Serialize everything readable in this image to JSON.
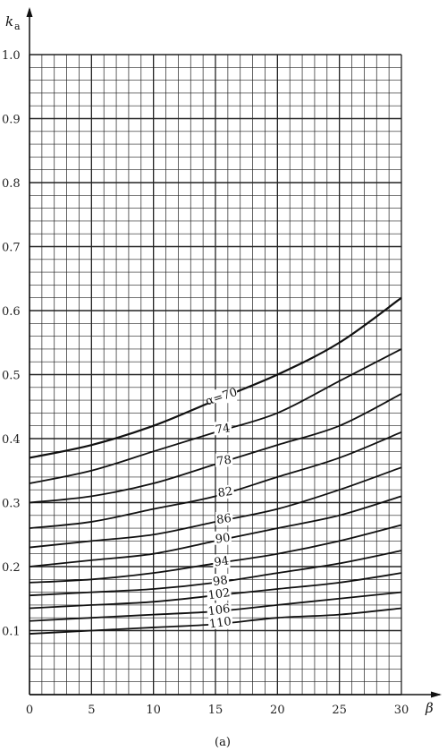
{
  "chart_data": {
    "type": "line",
    "title": "",
    "caption": "(a)",
    "xlabel": "β",
    "ylabel_main": "k",
    "ylabel_sub": "a",
    "xlim": [
      0,
      30
    ],
    "ylim": [
      0,
      1.0
    ],
    "x_ticks": [
      "0",
      "5",
      "10",
      "15",
      "20",
      "25",
      "30"
    ],
    "y_ticks": [
      "0.1",
      "0.2",
      "0.3",
      "0.4",
      "0.5",
      "0.6",
      "0.7",
      "0.8",
      "0.9",
      "1.0"
    ],
    "grid": true,
    "x": [
      0,
      5,
      10,
      15,
      20,
      25,
      30
    ],
    "series": [
      {
        "name": "α=70",
        "values": [
          0.37,
          0.39,
          0.42,
          0.46,
          0.5,
          0.55,
          0.62
        ]
      },
      {
        "name": "74",
        "values": [
          0.33,
          0.35,
          0.38,
          0.41,
          0.44,
          0.49,
          0.54
        ]
      },
      {
        "name": "78",
        "values": [
          0.3,
          0.31,
          0.33,
          0.36,
          0.39,
          0.42,
          0.47
        ]
      },
      {
        "name": "82",
        "values": [
          0.26,
          0.27,
          0.29,
          0.31,
          0.34,
          0.37,
          0.41
        ]
      },
      {
        "name": "86",
        "values": [
          0.23,
          0.24,
          0.25,
          0.27,
          0.29,
          0.32,
          0.355
        ]
      },
      {
        "name": "90",
        "values": [
          0.2,
          0.21,
          0.22,
          0.24,
          0.26,
          0.28,
          0.31
        ]
      },
      {
        "name": "94",
        "values": [
          0.175,
          0.18,
          0.19,
          0.205,
          0.22,
          0.24,
          0.265
        ]
      },
      {
        "name": "98",
        "values": [
          0.155,
          0.16,
          0.165,
          0.175,
          0.19,
          0.205,
          0.225
        ]
      },
      {
        "name": "102",
        "values": [
          0.135,
          0.14,
          0.145,
          0.155,
          0.165,
          0.175,
          0.19
        ]
      },
      {
        "name": "106",
        "values": [
          0.115,
          0.12,
          0.125,
          0.13,
          0.14,
          0.15,
          0.16
        ]
      },
      {
        "name": "110",
        "values": [
          0.095,
          0.1,
          0.105,
          0.11,
          0.12,
          0.125,
          0.135
        ]
      }
    ],
    "label_positions_x": [
      15.5,
      15.6,
      15.7,
      15.8,
      15.7,
      15.6,
      15.5,
      15.4,
      15.3,
      15.3,
      15.4
    ]
  }
}
